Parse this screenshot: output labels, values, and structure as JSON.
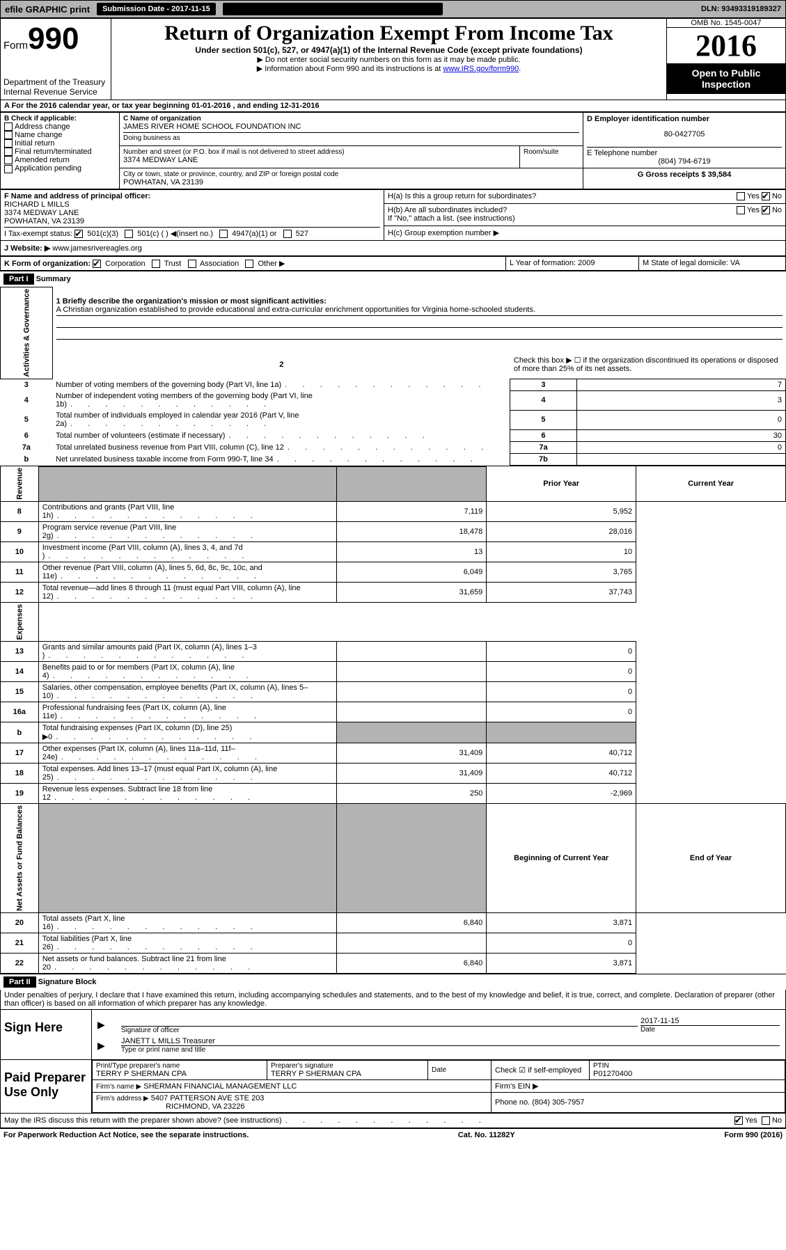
{
  "top_bar": {
    "efile_label": "efile GRAPHIC print",
    "submission_label": "Submission Date - 2017-11-15",
    "dln": "DLN: 93493319189327"
  },
  "header": {
    "form_label": "Form",
    "form_number": "990",
    "dept": "Department of the Treasury\nInternal Revenue Service",
    "title": "Return of Organization Exempt From Income Tax",
    "subtitle": "Under section 501(c), 527, or 4947(a)(1) of the Internal Revenue Code (except private foundations)",
    "instr1": "▶ Do not enter social security numbers on this form as it may be made public.",
    "instr2_pre": "▶ Information about Form 990 and its instructions is at ",
    "instr2_link": "www.IRS.gov/form990",
    "omb": "OMB No. 1545-0047",
    "year": "2016",
    "otp": "Open to Public Inspection"
  },
  "section_a": {
    "tax_year": "A For the 2016 calendar year, or tax year beginning 01-01-2016  , and ending 12-31-2016",
    "b_label": "B Check if applicable:",
    "b_options": [
      "Address change",
      "Name change",
      "Initial return",
      "Final return/terminated",
      "Amended return",
      "Application pending"
    ],
    "c_name_label": "C Name of organization",
    "c_name": "JAMES RIVER HOME SCHOOL FOUNDATION INC",
    "dba_label": "Doing business as",
    "addr_label": "Number and street (or P.O. box if mail is not delivered to street address)",
    "room_label": "Room/suite",
    "addr": "3374 MEDWAY LANE",
    "city_label": "City or town, state or province, country, and ZIP or foreign postal code",
    "city": "POWHATAN, VA  23139",
    "d_label": "D Employer identification number",
    "d_ein": "80-0427705",
    "e_label": "E Telephone number",
    "e_phone": "(804) 794-6719",
    "g_label": "G Gross receipts $ 39,584",
    "f_label": "F  Name and address of principal officer:",
    "f_name": "RICHARD L MILLS",
    "f_addr1": "3374 MEDWAY LANE",
    "f_addr2": "POWHATAN, VA  23139",
    "ha_label": "H(a)  Is this a group return for subordinates?",
    "hb_label": "H(b)  Are all subordinates included?",
    "hb_note": "If \"No,\" attach a list. (see instructions)",
    "hc_label": "H(c)  Group exemption number ▶",
    "yes": "Yes",
    "no": "No",
    "i_label": "I Tax-exempt status:",
    "i_501c3": "501(c)(3)",
    "i_501c": "501(c) (  ) ◀(insert no.)",
    "i_4947": "4947(a)(1) or",
    "i_527": "527",
    "j_label": "J Website: ▶",
    "j_site": "www.jamesrivereagles.org",
    "k_label": "K Form of organization:",
    "k_corp": "Corporation",
    "k_trust": "Trust",
    "k_assoc": "Association",
    "k_other": "Other ▶",
    "l_label": "L Year of formation: 2009",
    "m_label": "M State of legal domicile: VA"
  },
  "part1": {
    "hdr": "Part I",
    "title": "Summary",
    "vlabel1": "Activities & Governance",
    "vlabel2": "Revenue",
    "vlabel3": "Expenses",
    "vlabel4": "Net Assets or Fund Balances",
    "line1_label": "1 Briefly describe the organization's mission or most significant activities:",
    "line1_text": "A Christian organization established to provide educational and extra-curricular enrichment opportunities for Virginia home-schooled students.",
    "line2": "Check this box ▶ ☐ if the organization discontinued its operations or disposed of more than 25% of its net assets.",
    "lines_ag": [
      {
        "n": "3",
        "t": "Number of voting members of the governing body (Part VI, line 1a)",
        "b": "3",
        "v": "7"
      },
      {
        "n": "4",
        "t": "Number of independent voting members of the governing body (Part VI, line 1b)",
        "b": "4",
        "v": "3"
      },
      {
        "n": "5",
        "t": "Total number of individuals employed in calendar year 2016 (Part V, line 2a)",
        "b": "5",
        "v": "0"
      },
      {
        "n": "6",
        "t": "Total number of volunteers (estimate if necessary)",
        "b": "6",
        "v": "30"
      },
      {
        "n": "7a",
        "t": "Total unrelated business revenue from Part VIII, column (C), line 12",
        "b": "7a",
        "v": "0"
      },
      {
        "n": "b",
        "t": "Net unrelated business taxable income from Form 990-T, line 34",
        "b": "7b",
        "v": ""
      }
    ],
    "col_prior": "Prior Year",
    "col_current": "Current Year",
    "lines_rev": [
      {
        "n": "8",
        "t": "Contributions and grants (Part VIII, line 1h)",
        "p": "7,119",
        "c": "5,952"
      },
      {
        "n": "9",
        "t": "Program service revenue (Part VIII, line 2g)",
        "p": "18,478",
        "c": "28,016"
      },
      {
        "n": "10",
        "t": "Investment income (Part VIII, column (A), lines 3, 4, and 7d )",
        "p": "13",
        "c": "10"
      },
      {
        "n": "11",
        "t": "Other revenue (Part VIII, column (A), lines 5, 6d, 8c, 9c, 10c, and 11e)",
        "p": "6,049",
        "c": "3,765"
      },
      {
        "n": "12",
        "t": "Total revenue—add lines 8 through 11 (must equal Part VIII, column (A), line 12)",
        "p": "31,659",
        "c": "37,743"
      }
    ],
    "lines_exp": [
      {
        "n": "13",
        "t": "Grants and similar amounts paid (Part IX, column (A), lines 1–3 )",
        "p": "",
        "c": "0"
      },
      {
        "n": "14",
        "t": "Benefits paid to or for members (Part IX, column (A), line 4)",
        "p": "",
        "c": "0"
      },
      {
        "n": "15",
        "t": "Salaries, other compensation, employee benefits (Part IX, column (A), lines 5–10)",
        "p": "",
        "c": "0"
      },
      {
        "n": "16a",
        "t": "Professional fundraising fees (Part IX, column (A), line 11e)",
        "p": "",
        "c": "0"
      },
      {
        "n": "b",
        "t": "Total fundraising expenses (Part IX, column (D), line 25) ▶0",
        "p": "shade",
        "c": "shade"
      },
      {
        "n": "17",
        "t": "Other expenses (Part IX, column (A), lines 11a–11d, 11f–24e)",
        "p": "31,409",
        "c": "40,712"
      },
      {
        "n": "18",
        "t": "Total expenses. Add lines 13–17 (must equal Part IX, column (A), line 25)",
        "p": "31,409",
        "c": "40,712"
      },
      {
        "n": "19",
        "t": "Revenue less expenses. Subtract line 18 from line 12",
        "p": "250",
        "c": "-2,969"
      }
    ],
    "col_boy": "Beginning of Current Year",
    "col_eoy": "End of Year",
    "lines_na": [
      {
        "n": "20",
        "t": "Total assets (Part X, line 16)",
        "p": "6,840",
        "c": "3,871"
      },
      {
        "n": "21",
        "t": "Total liabilities (Part X, line 26)",
        "p": "",
        "c": "0"
      },
      {
        "n": "22",
        "t": "Net assets or fund balances. Subtract line 21 from line 20",
        "p": "6,840",
        "c": "3,871"
      }
    ]
  },
  "part2": {
    "hdr": "Part II",
    "title": "Signature Block",
    "declaration": "Under penalties of perjury, I declare that I have examined this return, including accompanying schedules and statements, and to the best of my knowledge and belief, it is true, correct, and complete. Declaration of preparer (other than officer) is based on all information of which preparer has any knowledge.",
    "sign_here": "Sign Here",
    "sig_officer": "Signature of officer",
    "sig_date": "Date",
    "sig_date_val": "2017-11-15",
    "sig_name": "JANETT L MILLS Treasurer",
    "sig_type": "Type or print name and title",
    "paid": "Paid Preparer Use Only",
    "prep_name_label": "Print/Type preparer's name",
    "prep_name": "TERRY P SHERMAN CPA",
    "prep_sig_label": "Preparer's signature",
    "prep_sig": "TERRY P SHERMAN CPA",
    "date_label": "Date",
    "self_emp": "Check ☑ if self-employed",
    "ptin_label": "PTIN",
    "ptin": "P01270400",
    "firm_name_label": "Firm's name    ▶",
    "firm_name": "SHERMAN FINANCIAL MANAGEMENT LLC",
    "firm_ein_label": "Firm's EIN ▶",
    "firm_addr_label": "Firm's address ▶",
    "firm_addr": "5407 PATTERSON AVE STE 203",
    "firm_city": "RICHMOND, VA  23226",
    "firm_phone_label": "Phone no. (804) 305-7957",
    "discuss": "May the IRS discuss this return with the preparer shown above? (see instructions)"
  },
  "footer": {
    "pra": "For Paperwork Reduction Act Notice, see the separate instructions.",
    "cat": "Cat. No. 11282Y",
    "form": "Form 990 (2016)"
  },
  "colors": {
    "shaded_bg": "#b3b3b3",
    "black": "#000000",
    "link": "#0000dd"
  }
}
